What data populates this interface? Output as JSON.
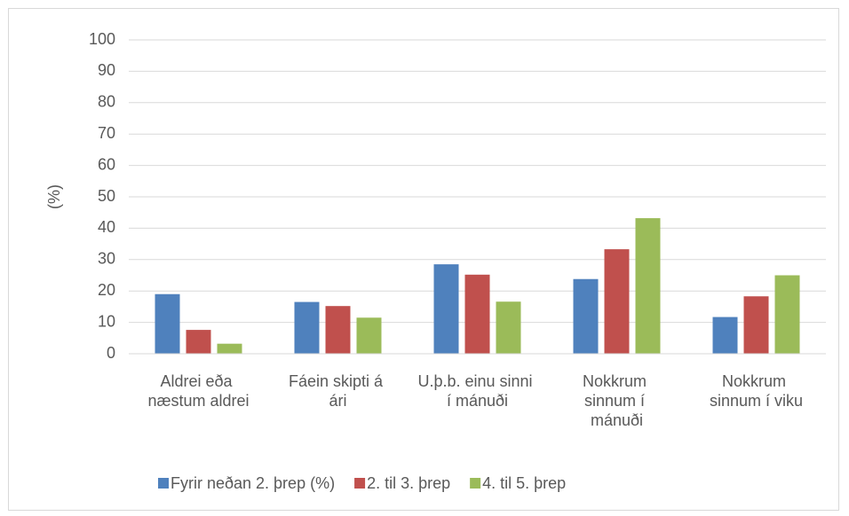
{
  "chart_data": {
    "type": "bar",
    "y_label": "(%)",
    "categories": [
      "Aldrei eða næstum aldrei",
      "Fáein skipti á ári",
      "U.þ.b. einu sinni í mánuði",
      "Nokkrum sinnum í mánuði",
      "Nokkrum sinnum í viku"
    ],
    "series": [
      {
        "name": "Fyrir neðan 2. þrep (%)",
        "color": "#4f81bd",
        "values": [
          19,
          16.5,
          28.5,
          23.8,
          11.7
        ]
      },
      {
        "name": "2. til 3. þrep",
        "color": "#c0504d",
        "values": [
          7.6,
          15.2,
          25.2,
          33.3,
          18.3
        ]
      },
      {
        "name": "4. til 5. þrep",
        "color": "#9bbb59",
        "values": [
          3.2,
          11.5,
          16.6,
          43.2,
          25
        ]
      }
    ],
    "ylim": [
      0,
      100
    ],
    "yticks": [
      0,
      10,
      20,
      30,
      40,
      50,
      60,
      70,
      80,
      90,
      100
    ],
    "grid": true,
    "legend": "bottom"
  }
}
